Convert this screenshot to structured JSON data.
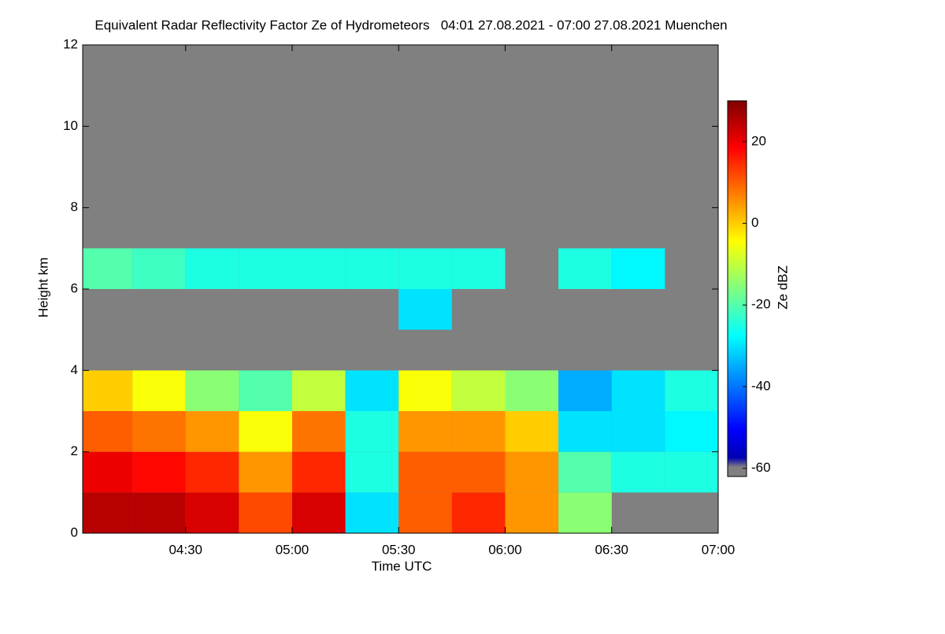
{
  "chart_data": {
    "type": "heatmap",
    "title": "Equivalent Radar Reflectivity Factor Ze of Hydrometeors   04:01 27.08.2021 - 07:00 27.08.2021 Muenchen",
    "xlabel": "Time UTC",
    "ylabel": "Height km",
    "colorbar_label": "Ze dBZ",
    "colormap": "jet",
    "nodata_color": "#808080",
    "x_edges": [
      241,
      255,
      270,
      285,
      300,
      315,
      330,
      345,
      360,
      375,
      390,
      405,
      420
    ],
    "y_edges": [
      0,
      1,
      2,
      3,
      4,
      5,
      6,
      7,
      8
    ],
    "z": [
      [
        25,
        25,
        22,
        12,
        22,
        -30,
        10,
        15,
        5,
        -15,
        null,
        null
      ],
      [
        20,
        18,
        15,
        5,
        15,
        -25,
        10,
        10,
        5,
        -20,
        -25,
        -25
      ],
      [
        10,
        8,
        5,
        -5,
        8,
        -25,
        5,
        5,
        0,
        -30,
        -30,
        -28
      ],
      [
        0,
        -5,
        -15,
        -20,
        -10,
        -30,
        -5,
        -10,
        -15,
        -35,
        -30,
        -25
      ],
      [
        null,
        null,
        null,
        null,
        null,
        null,
        null,
        null,
        null,
        null,
        null,
        null
      ],
      [
        null,
        null,
        null,
        null,
        null,
        null,
        -30,
        null,
        null,
        null,
        null,
        null
      ],
      [
        -20,
        -22,
        -25,
        -25,
        -25,
        -25,
        -25,
        -25,
        null,
        -25,
        -28,
        null
      ],
      [
        null,
        null,
        null,
        null,
        null,
        null,
        null,
        null,
        null,
        null,
        null,
        null
      ]
    ],
    "xlim": [
      241,
      420
    ],
    "xticks": [
      {
        "value": 270,
        "label": "04:30"
      },
      {
        "value": 300,
        "label": "05:00"
      },
      {
        "value": 330,
        "label": "05:30"
      },
      {
        "value": 360,
        "label": "06:00"
      },
      {
        "value": 390,
        "label": "06:30"
      },
      {
        "value": 420,
        "label": "07:00"
      }
    ],
    "ylim": [
      0,
      12
    ],
    "yticks": [
      0,
      2,
      4,
      6,
      8,
      10,
      12
    ],
    "clim": [
      -62,
      30
    ],
    "cticks": [
      -60,
      -40,
      -20,
      0,
      20
    ]
  }
}
